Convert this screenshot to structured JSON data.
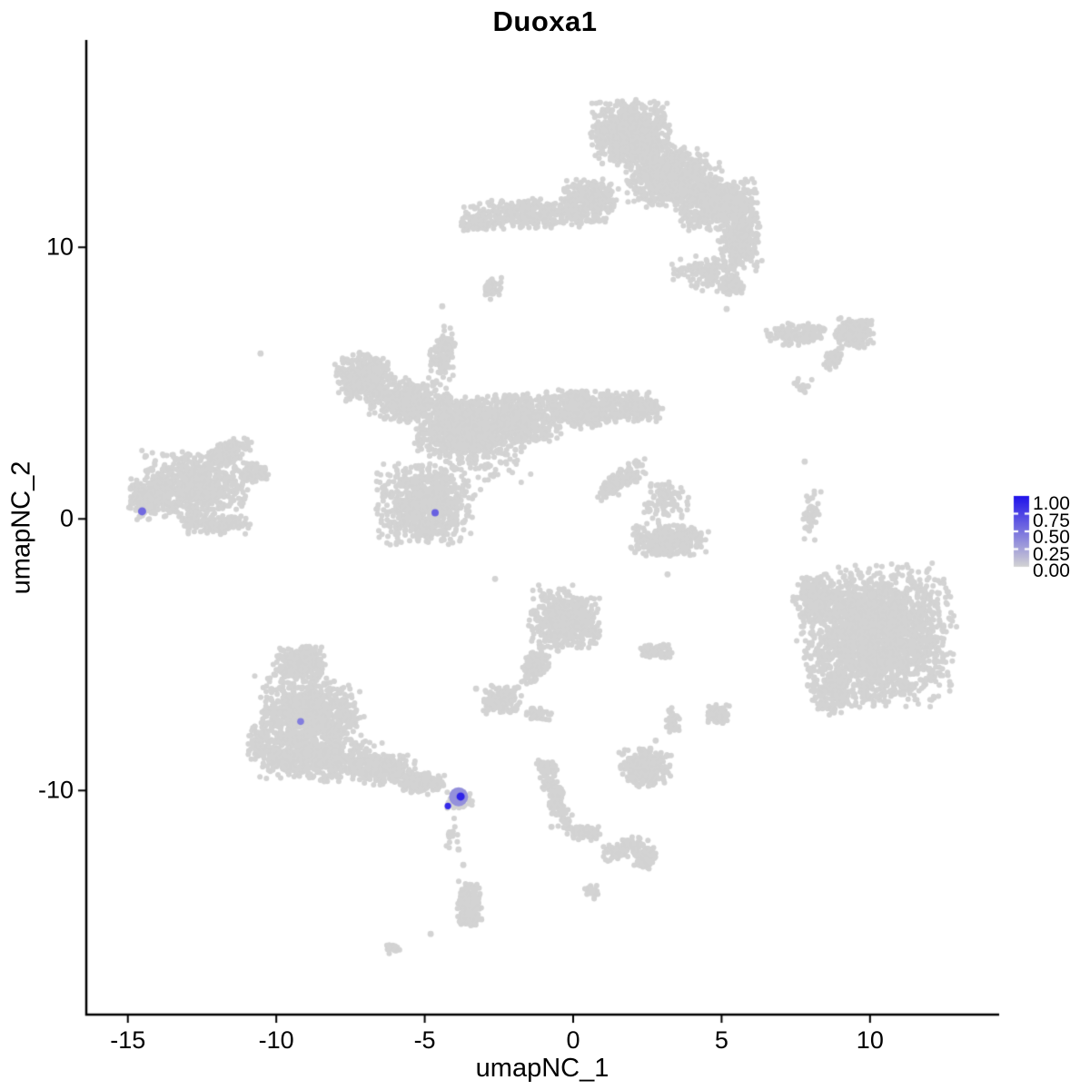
{
  "chart_data": {
    "type": "scatter",
    "title": "Duoxa1",
    "xlabel": "umapNC_1",
    "ylabel": "umapNC_2",
    "xlim": [
      -16.4,
      14.35
    ],
    "ylim": [
      -18.25,
      17.6
    ],
    "x_ticks": [
      -15,
      -10,
      -5,
      0,
      5,
      10
    ],
    "y_ticks": [
      10,
      0,
      -10
    ],
    "grid": false,
    "point_radius_px": 3,
    "point_color_gray": "#D3D3D3",
    "axis_color": "#000000",
    "legend": {
      "position": "right",
      "labels": [
        "1.00",
        "0.75",
        "0.50",
        "0.25",
        "0.00"
      ],
      "low_color": "#D3D3D3",
      "high_color": "#2013EB"
    },
    "background_clusters": [
      {
        "name": "top-main-a",
        "x": 1.96,
        "y": 14.25,
        "rx": 1.47,
        "ry": 1.27,
        "rot": 0,
        "n": 900
      },
      {
        "name": "top-main-b",
        "x": 3.34,
        "y": 12.58,
        "rx": 1.68,
        "ry": 1.17,
        "rot": 0,
        "n": 800
      },
      {
        "name": "top-main-c",
        "x": 4.87,
        "y": 11.57,
        "rx": 1.47,
        "ry": 1.0,
        "rot": 0,
        "n": 650
      },
      {
        "name": "top-main-d",
        "x": 5.63,
        "y": 10.23,
        "rx": 0.76,
        "ry": 1.17,
        "rot": 0,
        "n": 300
      },
      {
        "name": "top-left-arm",
        "x": -1.25,
        "y": 11.24,
        "rx": 2.6,
        "ry": 0.6,
        "rot": 0,
        "n": 420
      },
      {
        "name": "top-arm-blob",
        "x": 0.58,
        "y": 11.91,
        "rx": 0.98,
        "ry": 0.67,
        "rot": 0,
        "n": 260
      },
      {
        "name": "top-left-bits",
        "x": -3.24,
        "y": 10.9,
        "rx": 0.61,
        "ry": 0.43,
        "rot": 0,
        "n": 90
      },
      {
        "name": "top-bottom-scatter",
        "x": 4.41,
        "y": 9.06,
        "rx": 1.29,
        "ry": 0.67,
        "rot": 0,
        "n": 130
      },
      {
        "name": "top-bottom-knob",
        "x": 5.32,
        "y": 8.63,
        "rx": 0.49,
        "ry": 0.37,
        "rot": 0,
        "n": 60
      },
      {
        "name": "bridge-neck-upper",
        "x": -2.78,
        "y": 8.46,
        "rx": 0.4,
        "ry": 0.43,
        "rot": 0,
        "n": 45
      },
      {
        "name": "bridge-neck-lower",
        "x": -4.31,
        "y": 6.22,
        "rx": 0.37,
        "ry": 1.0,
        "rot": 0,
        "n": 55
      },
      {
        "name": "righttop-main",
        "x": 9.45,
        "y": 6.82,
        "rx": 0.7,
        "ry": 0.6,
        "rot": 0,
        "n": 230
      },
      {
        "name": "righttop-left",
        "x": 7.56,
        "y": 6.79,
        "rx": 1.16,
        "ry": 0.43,
        "rot": 0,
        "n": 150
      },
      {
        "name": "righttop-streak",
        "x": 8.75,
        "y": 5.85,
        "rx": 0.43,
        "ry": 0.33,
        "rot": -40,
        "n": 60
      },
      {
        "name": "righttop-dots",
        "x": 7.74,
        "y": 4.78,
        "rx": 0.34,
        "ry": 0.43,
        "rot": 0,
        "n": 22
      },
      {
        "name": "center-wing-ul",
        "x": -7.07,
        "y": 5.22,
        "rx": 1.01,
        "ry": 0.97,
        "rot": 0,
        "n": 420
      },
      {
        "name": "center-wing-l",
        "x": -5.54,
        "y": 4.38,
        "rx": 1.38,
        "ry": 0.87,
        "rot": 0,
        "n": 420
      },
      {
        "name": "center-body",
        "x": -3.7,
        "y": 3.38,
        "rx": 1.68,
        "ry": 1.2,
        "rot": 0,
        "n": 850
      },
      {
        "name": "center-body-r",
        "x": -1.71,
        "y": 3.71,
        "rx": 1.38,
        "ry": 1.0,
        "rot": 0,
        "n": 520
      },
      {
        "name": "center-arm-r",
        "x": 0.28,
        "y": 4.05,
        "rx": 1.38,
        "ry": 0.77,
        "rot": 0,
        "n": 420
      },
      {
        "name": "center-arm-r2",
        "x": 2.11,
        "y": 4.15,
        "rx": 0.92,
        "ry": 0.64,
        "rot": 0,
        "n": 260
      },
      {
        "name": "center-neck",
        "x": -4.47,
        "y": 5.95,
        "rx": 0.4,
        "ry": 1.0,
        "rot": 0,
        "n": 70
      },
      {
        "name": "center-tail-diag",
        "x": 1.65,
        "y": 1.44,
        "rx": 1.1,
        "ry": 0.4,
        "rot": -35,
        "n": 150
      },
      {
        "name": "center-lower-lobe",
        "x": -4.99,
        "y": 0.54,
        "rx": 1.71,
        "ry": 1.61,
        "rot": 0,
        "n": 800
      },
      {
        "name": "center-texture",
        "x": -3.09,
        "y": 2.47,
        "rx": 2.45,
        "ry": 1.51,
        "rot": 0,
        "n": 160
      },
      {
        "name": "left-main",
        "x": -12.73,
        "y": 1.27,
        "rx": 2.02,
        "ry": 1.4,
        "rot": 0,
        "n": 750
      },
      {
        "name": "left-west",
        "x": -14.2,
        "y": 0.77,
        "rx": 0.8,
        "ry": 0.9,
        "rot": 0,
        "n": 220
      },
      {
        "name": "left-arm",
        "x": -11.6,
        "y": 2.47,
        "rx": 0.86,
        "ry": 0.47,
        "rot": -30,
        "n": 120
      },
      {
        "name": "left-arm-tip",
        "x": -10.8,
        "y": 1.71,
        "rx": 0.55,
        "ry": 0.4,
        "rot": 0,
        "n": 80
      },
      {
        "name": "left-bottom",
        "x": -12.06,
        "y": -0.2,
        "rx": 1.22,
        "ry": 0.4,
        "rot": 0,
        "n": 130
      },
      {
        "name": "mid-strip",
        "x": 8.02,
        "y": 0.2,
        "rx": 0.28,
        "ry": 1.1,
        "rot": 8,
        "n": 55
      },
      {
        "name": "right-big",
        "x": 10.22,
        "y": -4.31,
        "rx": 2.72,
        "ry": 2.74,
        "rot": 0,
        "n": 2400
      },
      {
        "name": "right-big-nw",
        "x": 8.17,
        "y": -2.98,
        "rx": 0.8,
        "ry": 1.0,
        "rot": 0,
        "n": 220
      },
      {
        "name": "right-big-sw",
        "x": 8.75,
        "y": -6.39,
        "rx": 0.8,
        "ry": 0.87,
        "rot": 0,
        "n": 160
      },
      {
        "name": "mushroom-cap",
        "x": 3.18,
        "y": -0.8,
        "rx": 1.41,
        "ry": 0.64,
        "rot": 0,
        "n": 320
      },
      {
        "name": "mushroom-top",
        "x": 3.12,
        "y": 0.64,
        "rx": 0.83,
        "ry": 0.9,
        "rot": 0,
        "n": 95
      },
      {
        "name": "cbot-main",
        "x": -0.28,
        "y": -3.71,
        "rx": 1.32,
        "ry": 1.3,
        "rot": 0,
        "n": 520
      },
      {
        "name": "cbot-tail",
        "x": -1.19,
        "y": -5.42,
        "rx": 0.49,
        "ry": 0.87,
        "rot": 20,
        "n": 110
      },
      {
        "name": "cbot-blob",
        "x": -2.39,
        "y": -6.66,
        "rx": 0.7,
        "ry": 0.54,
        "rot": 0,
        "n": 160
      },
      {
        "name": "cbot-bits",
        "x": -1.19,
        "y": -7.19,
        "rx": 0.49,
        "ry": 0.3,
        "rot": 0,
        "n": 45
      },
      {
        "name": "cbot-right-bits",
        "x": 2.78,
        "y": -4.88,
        "rx": 0.64,
        "ry": 0.3,
        "rot": 0,
        "n": 70
      },
      {
        "name": "rmid-tri",
        "x": 4.9,
        "y": -7.19,
        "rx": 0.4,
        "ry": 0.4,
        "rot": 0,
        "n": 90
      },
      {
        "name": "rmid-sm",
        "x": 3.34,
        "y": -7.39,
        "rx": 0.28,
        "ry": 0.47,
        "rot": 0,
        "n": 45
      },
      {
        "name": "bleft-apex",
        "x": -9.21,
        "y": -5.35,
        "rx": 0.95,
        "ry": 0.77,
        "rot": 0,
        "n": 260
      },
      {
        "name": "bleft-main",
        "x": -8.9,
        "y": -7.29,
        "rx": 1.87,
        "ry": 1.54,
        "rot": 0,
        "n": 950
      },
      {
        "name": "bleft-base",
        "x": -8.54,
        "y": -8.86,
        "rx": 2.2,
        "ry": 0.87,
        "rot": 0,
        "n": 520
      },
      {
        "name": "bleft-ext",
        "x": -6.46,
        "y": -9.2,
        "rx": 1.25,
        "ry": 0.64,
        "rot": 0,
        "n": 260
      },
      {
        "name": "bleft-tail",
        "x": -5.08,
        "y": -9.73,
        "rx": 0.86,
        "ry": 0.43,
        "rot": 0,
        "n": 150
      },
      {
        "name": "bleft-west",
        "x": -10.53,
        "y": -8.19,
        "rx": 0.49,
        "ry": 0.87,
        "rot": 0,
        "n": 110
      },
      {
        "name": "expr-gray",
        "x": -3.82,
        "y": -10.37,
        "rx": 0.46,
        "ry": 0.37,
        "rot": 0,
        "n": 60
      },
      {
        "name": "expr-trail",
        "x": -4.13,
        "y": -11.67,
        "rx": 0.34,
        "ry": 0.87,
        "rot": 0,
        "n": 16
      },
      {
        "name": "btrail-diag",
        "x": -0.58,
        "y": -10.33,
        "rx": 0.34,
        "ry": 1.54,
        "rot": -20,
        "n": 140
      },
      {
        "name": "btrail-knob",
        "x": -0.86,
        "y": -9.2,
        "rx": 0.34,
        "ry": 0.37,
        "rot": 0,
        "n": 55
      },
      {
        "name": "btrail-arm",
        "x": 0.43,
        "y": -11.57,
        "rx": 0.64,
        "ry": 0.3,
        "rot": 0,
        "n": 65
      },
      {
        "name": "btrail-arm2",
        "x": 1.74,
        "y": -12.14,
        "rx": 0.89,
        "ry": 0.37,
        "rot": -18,
        "n": 95
      },
      {
        "name": "btrail-end",
        "x": 2.42,
        "y": -12.44,
        "rx": 0.46,
        "ry": 0.47,
        "rot": 0,
        "n": 110
      },
      {
        "name": "btrail-bit",
        "x": 0.61,
        "y": -13.75,
        "rx": 0.28,
        "ry": 0.3,
        "rot": 0,
        "n": 30
      },
      {
        "name": "bmid-blob",
        "x": 2.45,
        "y": -9.16,
        "rx": 0.95,
        "ry": 0.77,
        "rot": 0,
        "n": 270
      },
      {
        "name": "bsmall-bean",
        "x": -3.49,
        "y": -14.21,
        "rx": 0.46,
        "ry": 0.97,
        "rot": 0,
        "n": 230
      },
      {
        "name": "bsmall-bit",
        "x": -6.03,
        "y": -15.82,
        "rx": 0.28,
        "ry": 0.2,
        "rot": 0,
        "n": 25
      }
    ],
    "singleton_points": [
      [
        -10.53,
        6.09
      ],
      [
        5.17,
        7.73
      ],
      [
        -4.41,
        7.83
      ],
      [
        3.18,
        -2.04
      ],
      [
        -0.73,
        -11.34
      ],
      [
        -3.86,
        -12.17
      ],
      [
        -3.7,
        -12.74
      ],
      [
        -4.8,
        -15.28
      ],
      [
        7.8,
        2.11
      ],
      [
        2.78,
        -8.16
      ],
      [
        2.6,
        -8.46
      ],
      [
        -2.63,
        -2.21
      ],
      [
        -3.27,
        -6.25
      ]
    ],
    "expression_points": [
      {
        "x": -14.52,
        "y": 0.28,
        "value": 0.55,
        "r": 4.5
      },
      {
        "x": -4.65,
        "y": 0.23,
        "value": 0.6,
        "r": 4.0
      },
      {
        "x": -9.18,
        "y": -7.46,
        "value": 0.45,
        "r": 3.8
      },
      {
        "x": -3.86,
        "y": -10.23,
        "value": 0.35,
        "r": 10.5
      },
      {
        "x": -3.79,
        "y": -10.22,
        "value": 0.92,
        "r": 4.5
      },
      {
        "x": -4.22,
        "y": -10.57,
        "value": 0.88,
        "r": 3.6
      }
    ]
  }
}
